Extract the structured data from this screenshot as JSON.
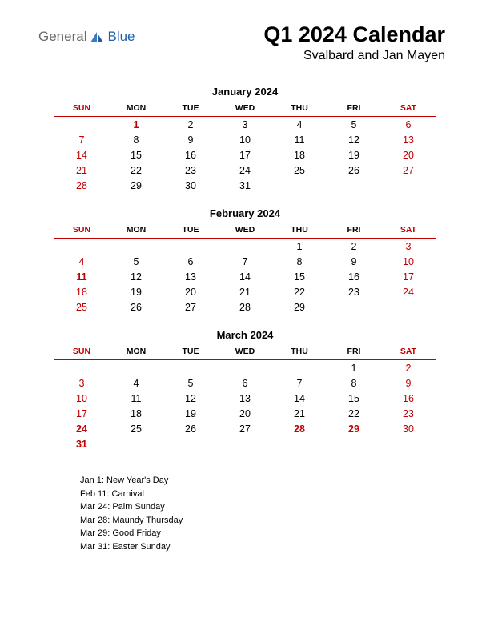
{
  "logo": {
    "text1": "General",
    "text2": "Blue",
    "color_gray": "#6b6b6b",
    "color_blue": "#1f5fa8",
    "shape_fill": "#1f5fa8"
  },
  "header": {
    "title": "Q1 2024 Calendar",
    "subtitle": "Svalbard and Jan Mayen"
  },
  "colors": {
    "red": "#c00000",
    "text": "#000000",
    "bg": "#ffffff"
  },
  "dayHeaders": [
    "SUN",
    "MON",
    "TUE",
    "WED",
    "THU",
    "FRI",
    "SAT"
  ],
  "months": [
    {
      "title": "January 2024",
      "weeks": [
        [
          {
            "n": ""
          },
          {
            "n": "1",
            "h": true
          },
          {
            "n": "2"
          },
          {
            "n": "3"
          },
          {
            "n": "4"
          },
          {
            "n": "5"
          },
          {
            "n": "6",
            "w": true
          }
        ],
        [
          {
            "n": "7",
            "w": true
          },
          {
            "n": "8"
          },
          {
            "n": "9"
          },
          {
            "n": "10"
          },
          {
            "n": "11"
          },
          {
            "n": "12"
          },
          {
            "n": "13",
            "w": true
          }
        ],
        [
          {
            "n": "14",
            "w": true
          },
          {
            "n": "15"
          },
          {
            "n": "16"
          },
          {
            "n": "17"
          },
          {
            "n": "18"
          },
          {
            "n": "19"
          },
          {
            "n": "20",
            "w": true
          }
        ],
        [
          {
            "n": "21",
            "w": true
          },
          {
            "n": "22"
          },
          {
            "n": "23"
          },
          {
            "n": "24"
          },
          {
            "n": "25"
          },
          {
            "n": "26"
          },
          {
            "n": "27",
            "w": true
          }
        ],
        [
          {
            "n": "28",
            "w": true
          },
          {
            "n": "29"
          },
          {
            "n": "30"
          },
          {
            "n": "31"
          },
          {
            "n": ""
          },
          {
            "n": ""
          },
          {
            "n": ""
          }
        ]
      ]
    },
    {
      "title": "February 2024",
      "weeks": [
        [
          {
            "n": ""
          },
          {
            "n": ""
          },
          {
            "n": ""
          },
          {
            "n": ""
          },
          {
            "n": "1"
          },
          {
            "n": "2"
          },
          {
            "n": "3",
            "w": true
          }
        ],
        [
          {
            "n": "4",
            "w": true
          },
          {
            "n": "5"
          },
          {
            "n": "6"
          },
          {
            "n": "7"
          },
          {
            "n": "8"
          },
          {
            "n": "9"
          },
          {
            "n": "10",
            "w": true
          }
        ],
        [
          {
            "n": "11",
            "h": true
          },
          {
            "n": "12"
          },
          {
            "n": "13"
          },
          {
            "n": "14"
          },
          {
            "n": "15"
          },
          {
            "n": "16"
          },
          {
            "n": "17",
            "w": true
          }
        ],
        [
          {
            "n": "18",
            "w": true
          },
          {
            "n": "19"
          },
          {
            "n": "20"
          },
          {
            "n": "21"
          },
          {
            "n": "22"
          },
          {
            "n": "23"
          },
          {
            "n": "24",
            "w": true
          }
        ],
        [
          {
            "n": "25",
            "w": true
          },
          {
            "n": "26"
          },
          {
            "n": "27"
          },
          {
            "n": "28"
          },
          {
            "n": "29"
          },
          {
            "n": ""
          },
          {
            "n": ""
          }
        ]
      ]
    },
    {
      "title": "March 2024",
      "weeks": [
        [
          {
            "n": ""
          },
          {
            "n": ""
          },
          {
            "n": ""
          },
          {
            "n": ""
          },
          {
            "n": ""
          },
          {
            "n": "1"
          },
          {
            "n": "2",
            "w": true
          }
        ],
        [
          {
            "n": "3",
            "w": true
          },
          {
            "n": "4"
          },
          {
            "n": "5"
          },
          {
            "n": "6"
          },
          {
            "n": "7"
          },
          {
            "n": "8"
          },
          {
            "n": "9",
            "w": true
          }
        ],
        [
          {
            "n": "10",
            "w": true
          },
          {
            "n": "11"
          },
          {
            "n": "12"
          },
          {
            "n": "13"
          },
          {
            "n": "14"
          },
          {
            "n": "15"
          },
          {
            "n": "16",
            "w": true
          }
        ],
        [
          {
            "n": "17",
            "w": true
          },
          {
            "n": "18"
          },
          {
            "n": "19"
          },
          {
            "n": "20"
          },
          {
            "n": "21"
          },
          {
            "n": "22"
          },
          {
            "n": "23",
            "w": true
          }
        ],
        [
          {
            "n": "24",
            "h": true
          },
          {
            "n": "25"
          },
          {
            "n": "26"
          },
          {
            "n": "27"
          },
          {
            "n": "28",
            "h": true
          },
          {
            "n": "29",
            "h": true
          },
          {
            "n": "30",
            "w": true
          }
        ],
        [
          {
            "n": "31",
            "h": true
          },
          {
            "n": ""
          },
          {
            "n": ""
          },
          {
            "n": ""
          },
          {
            "n": ""
          },
          {
            "n": ""
          },
          {
            "n": ""
          }
        ]
      ]
    }
  ],
  "holidays": [
    "Jan 1: New Year's Day",
    "Feb 11: Carnival",
    "Mar 24: Palm Sunday",
    "Mar 28: Maundy Thursday",
    "Mar 29: Good Friday",
    "Mar 31: Easter Sunday"
  ]
}
